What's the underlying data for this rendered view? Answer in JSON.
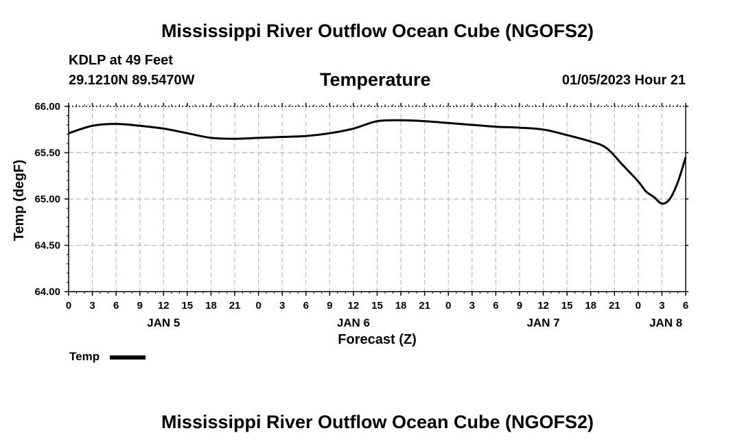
{
  "header": {
    "title": "Mississippi River Outflow Ocean Cube (NGOFS2)",
    "station": "KDLP at 49 Feet",
    "coords": "29.1210N  89.5470W",
    "variable": "Temperature",
    "datetime": "01/05/2023 Hour 21"
  },
  "footer": {
    "title": "Mississippi River Outflow Ocean Cube (NGOFS2)"
  },
  "legend": {
    "label": "Temp",
    "color": "#000000"
  },
  "chart_data": {
    "type": "line",
    "title": "Temperature",
    "xlabel": "Forecast (Z)",
    "ylabel": "Temp (degF)",
    "xlim": [
      0,
      78
    ],
    "ylim": [
      64.0,
      66.0
    ],
    "x_tick_labels": [
      "0",
      "3",
      "6",
      "9",
      "12",
      "15",
      "18",
      "21",
      "0",
      "3",
      "6",
      "9",
      "12",
      "15",
      "18",
      "21",
      "0",
      "3",
      "6",
      "9",
      "12",
      "15",
      "18",
      "21",
      "0",
      "3",
      "6"
    ],
    "y_ticks": [
      64.0,
      64.5,
      65.0,
      65.5,
      66.0
    ],
    "y_tick_labels": [
      "64.00",
      "64.50",
      "65.00",
      "65.50",
      "66.00"
    ],
    "date_labels": [
      {
        "label": "JAN 5",
        "hour": 12
      },
      {
        "label": "JAN 6",
        "hour": 36
      },
      {
        "label": "JAN 7",
        "hour": 60
      },
      {
        "label": "JAN 8",
        "hour": 75.5
      }
    ],
    "grid": true,
    "legend_position": "bottom-left",
    "series": [
      {
        "name": "Temp",
        "x": [
          0,
          3,
          6,
          9,
          12,
          15,
          18,
          21,
          24,
          27,
          30,
          33,
          36,
          39,
          42,
          45,
          48,
          51,
          54,
          57,
          60,
          63,
          66,
          68,
          70,
          72,
          73,
          74,
          75,
          76,
          77,
          78
        ],
        "y": [
          65.71,
          65.79,
          65.81,
          65.79,
          65.76,
          65.71,
          65.66,
          65.65,
          65.66,
          65.67,
          65.68,
          65.71,
          65.76,
          65.84,
          65.85,
          65.84,
          65.82,
          65.8,
          65.78,
          65.77,
          65.75,
          65.69,
          65.62,
          65.55,
          65.37,
          65.19,
          65.08,
          65.02,
          64.95,
          65.0,
          65.18,
          65.45
        ]
      }
    ]
  }
}
